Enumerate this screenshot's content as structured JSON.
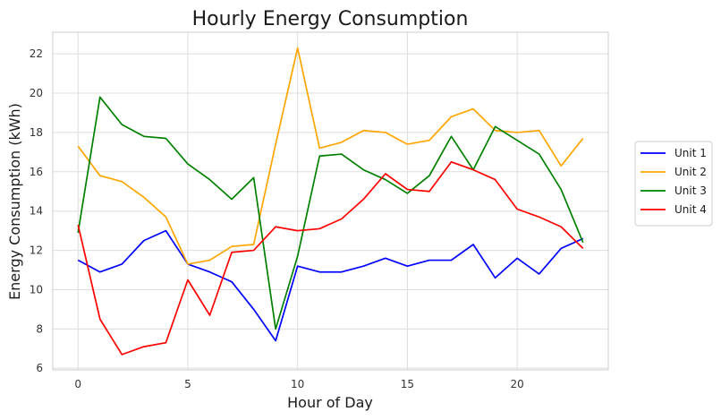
{
  "chart_data": {
    "type": "line",
    "title": "Hourly Energy Consumption",
    "xlabel": "Hour of Day",
    "ylabel": "Energy Consumption (kWh)",
    "xlim": [
      -1.15,
      24.15
    ],
    "ylim": [
      5.92,
      23.1
    ],
    "xticks": [
      0,
      5,
      10,
      15,
      20
    ],
    "yticks": [
      6,
      8,
      10,
      12,
      14,
      16,
      18,
      20,
      22
    ],
    "grid": true,
    "legend_position": "right",
    "x": [
      0,
      1,
      2,
      3,
      4,
      5,
      6,
      7,
      8,
      9,
      10,
      11,
      12,
      13,
      14,
      15,
      16,
      17,
      18,
      19,
      20,
      21,
      22,
      23
    ],
    "series": [
      {
        "name": "Unit 1",
        "color": "#0000ff",
        "values": [
          11.5,
          10.9,
          11.3,
          12.5,
          13.0,
          11.3,
          10.9,
          10.4,
          9.0,
          7.4,
          11.2,
          10.9,
          10.9,
          11.2,
          11.6,
          11.2,
          11.5,
          11.5,
          12.3,
          10.6,
          11.6,
          10.8,
          12.1,
          12.6
        ]
      },
      {
        "name": "Unit 2",
        "color": "#ffa500",
        "values": [
          17.3,
          15.8,
          15.5,
          14.7,
          13.7,
          11.3,
          11.5,
          12.2,
          12.3,
          17.4,
          22.3,
          17.2,
          17.5,
          18.1,
          18.0,
          17.4,
          17.6,
          18.8,
          19.2,
          18.1,
          18.0,
          18.1,
          16.3,
          17.7
        ]
      },
      {
        "name": "Unit 3",
        "color": "#008000",
        "values": [
          12.9,
          19.8,
          18.4,
          17.8,
          17.7,
          16.4,
          15.6,
          14.6,
          15.7,
          8.0,
          11.7,
          16.8,
          16.9,
          16.1,
          15.6,
          14.9,
          15.8,
          17.8,
          16.1,
          18.3,
          17.6,
          16.9,
          15.1,
          12.4
        ]
      },
      {
        "name": "Unit 4",
        "color": "#ff0000",
        "values": [
          13.3,
          8.5,
          6.7,
          7.1,
          7.3,
          10.5,
          8.7,
          11.9,
          12.0,
          13.2,
          13.0,
          13.1,
          13.6,
          14.6,
          15.9,
          15.1,
          15.0,
          16.5,
          16.1,
          15.6,
          14.1,
          13.7,
          13.2,
          12.1
        ]
      }
    ]
  }
}
